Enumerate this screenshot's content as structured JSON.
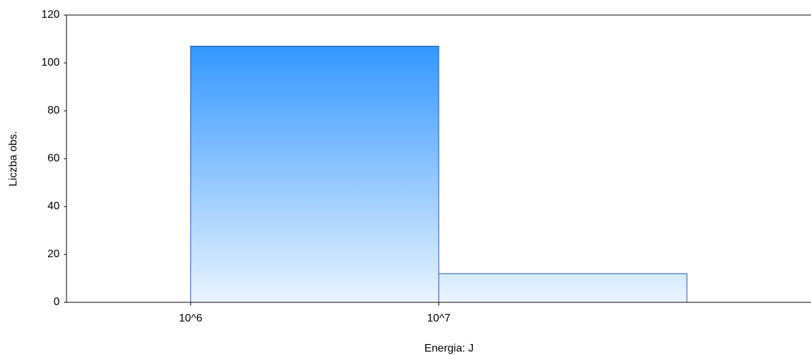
{
  "chart_data": {
    "type": "histogram",
    "xlabel": "Energia: J",
    "ylabel": "Liczba obs.",
    "bins": [
      1000000,
      10000000,
      100000000
    ],
    "values": [
      107,
      12
    ],
    "color": "#1e8cff",
    "xscale": "log",
    "xlim": [
      316228,
      316227766
    ],
    "xticks": [
      {
        "value": 1000000,
        "label": "10^6"
      },
      {
        "value": 10000000,
        "label": "10^7"
      }
    ],
    "ylim": [
      0,
      120
    ],
    "yticks": [
      0,
      20,
      40,
      60,
      80,
      100,
      120
    ],
    "grid": false
  }
}
